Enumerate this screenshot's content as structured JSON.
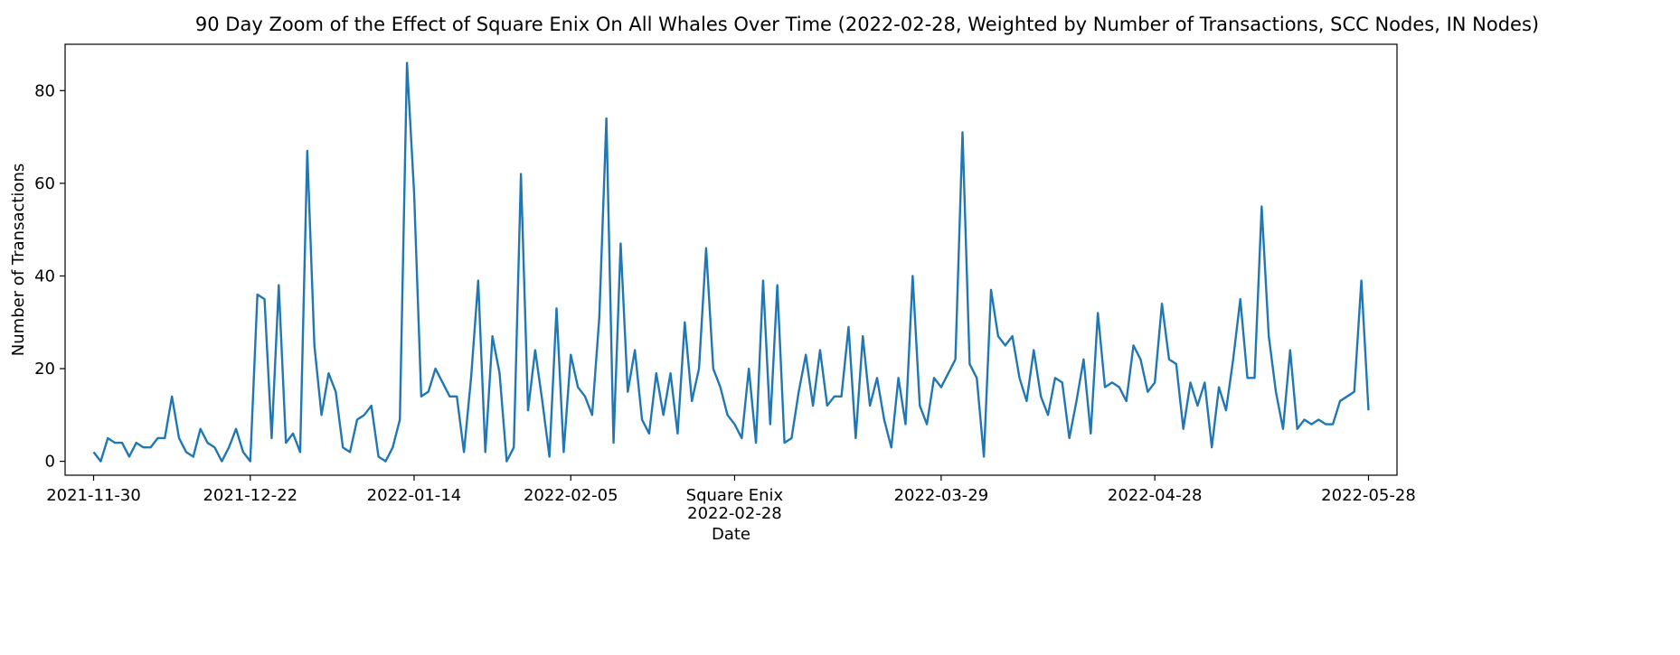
{
  "chart_data": {
    "type": "line",
    "title": "90 Day Zoom of the Effect of Square Enix On All Whales Over Time (2022-02-28, Weighted by Number of Transactions, SCC Nodes, IN Nodes)",
    "xlabel": "Date",
    "ylabel": "Number of Transactions",
    "ylim": [
      -3,
      90
    ],
    "yticks": [
      0,
      20,
      40,
      60,
      80
    ],
    "xlim": [
      "2021-11-26",
      "2022-06-01"
    ],
    "xticks": [
      {
        "date": "2021-11-30",
        "label": "2021-11-30"
      },
      {
        "date": "2021-12-22",
        "label": "2021-12-22"
      },
      {
        "date": "2022-01-14",
        "label": "2022-01-14"
      },
      {
        "date": "2022-02-05",
        "label": "2022-02-05"
      },
      {
        "date": "2022-02-28",
        "label": "Square Enix\n2022-02-28"
      },
      {
        "date": "2022-03-29",
        "label": "2022-03-29"
      },
      {
        "date": "2022-04-28",
        "label": "2022-04-28"
      },
      {
        "date": "2022-05-28",
        "label": "2022-05-28"
      }
    ],
    "grid": false,
    "line_color": "#1f77b4",
    "series": [
      {
        "name": "",
        "x": [
          "2021-11-30",
          "2021-12-01",
          "2021-12-02",
          "2021-12-03",
          "2021-12-04",
          "2021-12-05",
          "2021-12-06",
          "2021-12-07",
          "2021-12-08",
          "2021-12-09",
          "2021-12-10",
          "2021-12-11",
          "2021-12-12",
          "2021-12-13",
          "2021-12-14",
          "2021-12-15",
          "2021-12-16",
          "2021-12-17",
          "2021-12-18",
          "2021-12-19",
          "2021-12-20",
          "2021-12-21",
          "2021-12-22",
          "2021-12-23",
          "2021-12-24",
          "2021-12-25",
          "2021-12-26",
          "2021-12-27",
          "2021-12-28",
          "2021-12-29",
          "2021-12-30",
          "2021-12-31",
          "2022-01-01",
          "2022-01-02",
          "2022-01-03",
          "2022-01-04",
          "2022-01-05",
          "2022-01-06",
          "2022-01-07",
          "2022-01-08",
          "2022-01-09",
          "2022-01-10",
          "2022-01-11",
          "2022-01-12",
          "2022-01-13",
          "2022-01-14",
          "2022-01-15",
          "2022-01-16",
          "2022-01-17",
          "2022-01-18",
          "2022-01-19",
          "2022-01-20",
          "2022-01-21",
          "2022-01-22",
          "2022-01-23",
          "2022-01-24",
          "2022-01-25",
          "2022-01-26",
          "2022-01-27",
          "2022-01-28",
          "2022-01-29",
          "2022-01-30",
          "2022-01-31",
          "2022-02-01",
          "2022-02-02",
          "2022-02-03",
          "2022-02-04",
          "2022-02-05",
          "2022-02-06",
          "2022-02-07",
          "2022-02-08",
          "2022-02-09",
          "2022-02-10",
          "2022-02-11",
          "2022-02-12",
          "2022-02-13",
          "2022-02-14",
          "2022-02-15",
          "2022-02-16",
          "2022-02-17",
          "2022-02-18",
          "2022-02-19",
          "2022-02-20",
          "2022-02-21",
          "2022-02-22",
          "2022-02-23",
          "2022-02-24",
          "2022-02-25",
          "2022-02-26",
          "2022-02-27",
          "2022-02-28",
          "2022-03-01",
          "2022-03-02",
          "2022-03-03",
          "2022-03-04",
          "2022-03-05",
          "2022-03-06",
          "2022-03-07",
          "2022-03-08",
          "2022-03-09",
          "2022-03-10",
          "2022-03-11",
          "2022-03-12",
          "2022-03-13",
          "2022-03-14",
          "2022-03-15",
          "2022-03-16",
          "2022-03-17",
          "2022-03-18",
          "2022-03-19",
          "2022-03-20",
          "2022-03-21",
          "2022-03-22",
          "2022-03-23",
          "2022-03-24",
          "2022-03-25",
          "2022-03-26",
          "2022-03-27",
          "2022-03-28",
          "2022-03-29",
          "2022-03-30",
          "2022-03-31",
          "2022-04-01",
          "2022-04-02",
          "2022-04-03",
          "2022-04-04",
          "2022-04-05",
          "2022-04-06",
          "2022-04-07",
          "2022-04-08",
          "2022-04-09",
          "2022-04-10",
          "2022-04-11",
          "2022-04-12",
          "2022-04-13",
          "2022-04-14",
          "2022-04-15",
          "2022-04-16",
          "2022-04-17",
          "2022-04-18",
          "2022-04-19",
          "2022-04-20",
          "2022-04-21",
          "2022-04-22",
          "2022-04-23",
          "2022-04-24",
          "2022-04-25",
          "2022-04-26",
          "2022-04-27",
          "2022-04-28",
          "2022-04-29",
          "2022-04-30",
          "2022-05-01",
          "2022-05-02",
          "2022-05-03",
          "2022-05-04",
          "2022-05-05",
          "2022-05-06",
          "2022-05-07",
          "2022-05-08",
          "2022-05-09",
          "2022-05-10",
          "2022-05-11",
          "2022-05-12",
          "2022-05-13",
          "2022-05-14",
          "2022-05-15",
          "2022-05-16",
          "2022-05-17",
          "2022-05-18",
          "2022-05-19",
          "2022-05-20",
          "2022-05-21",
          "2022-05-22",
          "2022-05-23",
          "2022-05-24",
          "2022-05-25",
          "2022-05-26",
          "2022-05-27",
          "2022-05-28"
        ],
        "y": [
          2,
          0,
          5,
          4,
          4,
          1,
          4,
          3,
          3,
          5,
          5,
          14,
          5,
          2,
          1,
          7,
          4,
          3,
          0,
          3,
          7,
          2,
          0,
          36,
          35,
          5,
          38,
          4,
          6,
          2,
          67,
          25,
          10,
          19,
          15,
          3,
          2,
          9,
          10,
          12,
          1,
          0,
          3,
          9,
          86,
          58,
          14,
          15,
          20,
          17,
          14,
          14,
          2,
          18,
          39,
          2,
          27,
          19,
          0,
          3,
          62,
          11,
          24,
          13,
          1,
          33,
          2,
          23,
          16,
          14,
          10,
          31,
          74,
          4,
          47,
          15,
          24,
          9,
          6,
          19,
          10,
          19,
          6,
          30,
          13,
          20,
          46,
          20,
          16,
          10,
          8,
          5,
          20,
          4,
          39,
          8,
          38,
          4,
          5,
          15,
          23,
          12,
          24,
          12,
          14,
          14,
          29,
          5,
          27,
          12,
          18,
          9,
          3,
          18,
          8,
          40,
          12,
          8,
          18,
          16,
          19,
          22,
          71,
          21,
          18,
          1,
          37,
          27,
          25,
          27,
          18,
          13,
          24,
          14,
          10,
          18,
          17,
          5,
          13,
          22,
          6,
          32,
          16,
          17,
          16,
          13,
          25,
          22,
          15,
          17,
          34,
          22,
          21,
          7,
          17,
          12,
          17,
          3,
          16,
          11,
          22,
          35,
          18,
          18,
          55,
          27,
          15,
          7,
          24,
          7,
          9,
          8,
          9,
          8,
          8,
          13,
          14,
          15,
          39,
          11
        ]
      }
    ]
  }
}
